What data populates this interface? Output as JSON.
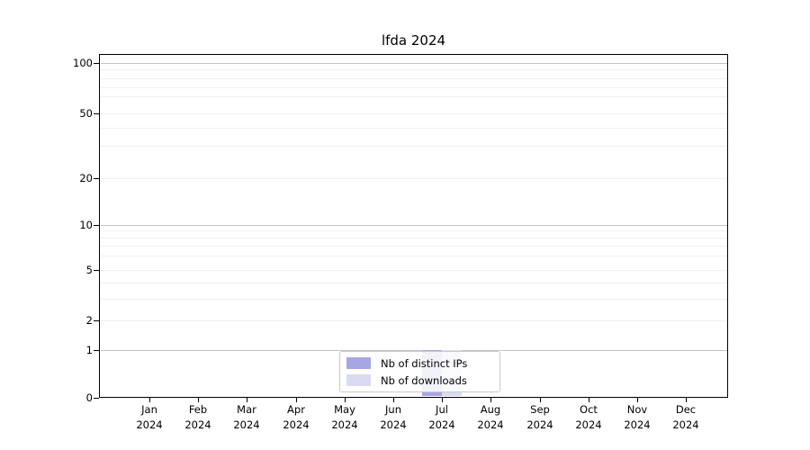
{
  "title": "lfda 2024",
  "chart_data": {
    "type": "bar",
    "title": "lfda 2024",
    "categories": [
      "Jan 2024",
      "Feb 2024",
      "Mar 2024",
      "Apr 2024",
      "May 2024",
      "Jun 2024",
      "Jul 2024",
      "Aug 2024",
      "Sep 2024",
      "Oct 2024",
      "Nov 2024",
      "Dec 2024"
    ],
    "series": [
      {
        "name": "Nb of distinct IPs",
        "color": "#a6a6e4",
        "values": [
          0,
          0,
          0,
          0,
          0,
          0,
          1,
          0,
          0,
          0,
          0,
          0
        ]
      },
      {
        "name": "Nb of downloads",
        "color": "#dadaf3",
        "values": [
          0,
          0,
          0,
          0,
          0,
          0,
          1,
          0,
          0,
          0,
          0,
          0
        ]
      }
    ],
    "xlabel": "",
    "ylabel": "",
    "yscale": "symlog",
    "y_tick_values": [
      100,
      50,
      20,
      10,
      5,
      2,
      1,
      0
    ],
    "ylim": [
      0,
      115
    ],
    "grid": "horizontal",
    "legend_position": "lower-center-inside"
  },
  "colors": {
    "major_grid": "#c4c4c4",
    "minor_grid": "#f0f0f0",
    "spine": "#000000",
    "legend_border": "#c9c9c9",
    "background": "#ffffff"
  }
}
